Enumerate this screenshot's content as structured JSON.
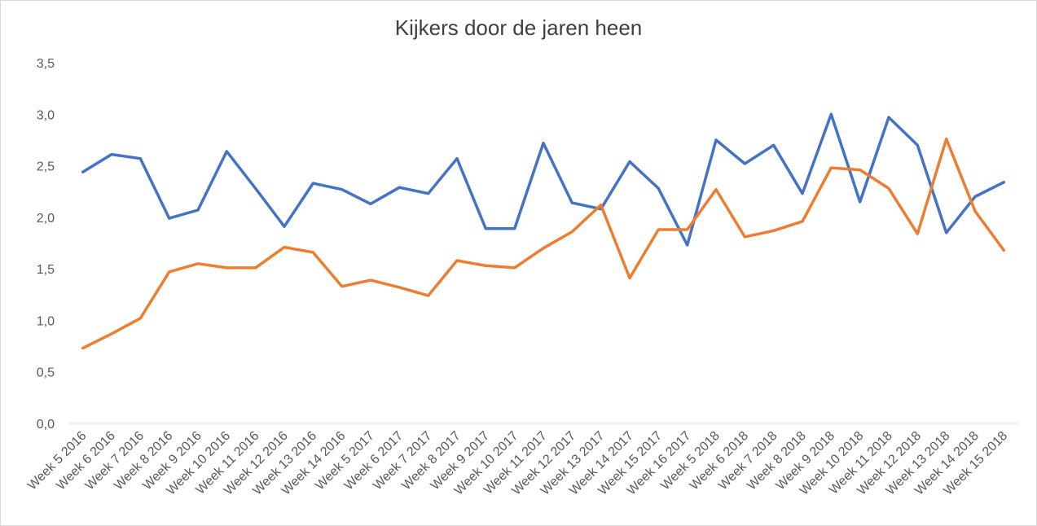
{
  "chart_data": {
    "type": "line",
    "title": "Kijkers door de jaren heen",
    "xlabel": "",
    "ylabel": "",
    "ylim": [
      0,
      3.5
    ],
    "y_ticks": [
      "0,0",
      "0,5",
      "1,0",
      "1,5",
      "2,0",
      "2,5",
      "3,0",
      "3,5"
    ],
    "grid": false,
    "legend": "none",
    "categories": [
      "Week 5 2016",
      "Week 6 2016",
      "Week 7 2016",
      "Week 8 2016",
      "Week 9 2016",
      "Week 10 2016",
      "Week 11 2016",
      "Week 12 2016",
      "Week 13 2016",
      "Week 14 2016",
      "Week 5 2017",
      "Week 6 2017",
      "Week 7 2017",
      "Week 8 2017",
      "Week 9 2017",
      "Week 10 2017",
      "Week 11 2017",
      "Week 12 2017",
      "Week 13 2017",
      "Week 14 2017",
      "Week 15 2017",
      "Week 16 2017",
      "Week 5 2018",
      "Week 6 2018",
      "Week 7 2018",
      "Week 8 2018",
      "Week 9 2018",
      "Week 10 2018",
      "Week 11 2018",
      "Week 12 2018",
      "Week 13 2018",
      "Week 14 2018",
      "Week 15 2018"
    ],
    "series": [
      {
        "color": "#4472c4",
        "values": [
          2.44,
          2.61,
          2.57,
          1.99,
          2.07,
          2.64,
          2.28,
          1.91,
          2.33,
          2.27,
          2.13,
          2.29,
          2.23,
          2.57,
          1.89,
          1.89,
          2.72,
          2.14,
          2.08,
          2.54,
          2.28,
          1.73,
          2.75,
          2.52,
          2.7,
          2.23,
          3.0,
          2.15,
          2.97,
          2.7,
          1.85,
          2.2,
          2.34
        ]
      },
      {
        "color": "#ed7d31",
        "values": [
          0.73,
          0.87,
          1.02,
          1.47,
          1.55,
          1.51,
          1.51,
          1.71,
          1.66,
          1.33,
          1.39,
          1.32,
          1.24,
          1.58,
          1.53,
          1.51,
          1.7,
          1.86,
          2.12,
          1.41,
          1.88,
          1.88,
          2.27,
          1.81,
          1.87,
          1.96,
          2.48,
          2.46,
          2.28,
          1.84,
          2.76,
          2.06,
          1.68
        ]
      }
    ]
  }
}
